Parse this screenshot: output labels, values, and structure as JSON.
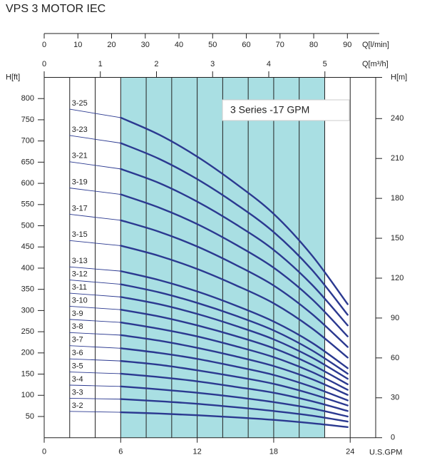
{
  "chart_data": {
    "type": "line",
    "title": "VPS 3 MOTOR IEC",
    "annotation": "3 Series -17 GPM",
    "xlabel": "U.S.GPM",
    "ylabel": "H[ft]",
    "y2label": "H[m]",
    "x2label": "Q[l/min]",
    "x3label": "Q[m³/h]",
    "xlim": [
      0,
      26
    ],
    "xticks": [
      0,
      6,
      12,
      18,
      24
    ],
    "xgrid": [
      2,
      4,
      6,
      8,
      10,
      12,
      14,
      16,
      18,
      20,
      22,
      24
    ],
    "x2lim": [
      0,
      98.4
    ],
    "x2ticks": [
      0,
      10,
      20,
      30,
      40,
      50,
      60,
      70,
      80,
      90
    ],
    "x3lim": [
      0,
      5.905
    ],
    "x3ticks": [
      0,
      1,
      2,
      3,
      4,
      5
    ],
    "ylim": [
      0,
      850
    ],
    "yticks": [
      50,
      100,
      150,
      200,
      250,
      300,
      350,
      400,
      450,
      500,
      550,
      600,
      650,
      700,
      750,
      800
    ],
    "y2lim": [
      0,
      271
    ],
    "y2ticks": [
      0,
      30,
      60,
      90,
      120,
      150,
      180,
      210,
      240
    ],
    "shade": [
      6,
      22
    ],
    "shade_color": "#a9dfe3",
    "color": "#2b3990",
    "x": [
      2,
      6,
      9,
      12,
      15,
      18,
      21,
      23.8
    ],
    "series": [
      {
        "name": "3-2",
        "values": [
          62,
          60,
          57,
          53,
          48,
          42,
          34,
          25
        ]
      },
      {
        "name": "3-3",
        "values": [
          93,
          91,
          86,
          80,
          72,
          63,
          52,
          38
        ]
      },
      {
        "name": "3-4",
        "values": [
          124,
          121,
          114,
          106,
          96,
          84,
          69,
          50
        ]
      },
      {
        "name": "3-5",
        "values": [
          155,
          151,
          143,
          133,
          120,
          106,
          86,
          63
        ]
      },
      {
        "name": "3-6",
        "values": [
          186,
          181,
          172,
          159,
          144,
          127,
          103,
          76
        ]
      },
      {
        "name": "3-7",
        "values": [
          217,
          211,
          200,
          186,
          168,
          148,
          120,
          88
        ]
      },
      {
        "name": "3-8",
        "values": [
          248,
          242,
          229,
          212,
          192,
          169,
          138,
          101
        ]
      },
      {
        "name": "3-9",
        "values": [
          279,
          272,
          257,
          239,
          216,
          190,
          155,
          113
        ]
      },
      {
        "name": "3-10",
        "values": [
          310,
          302,
          286,
          265,
          240,
          211,
          172,
          126
        ]
      },
      {
        "name": "3-11",
        "values": [
          341,
          332,
          315,
          292,
          264,
          232,
          189,
          139
        ]
      },
      {
        "name": "3-12",
        "values": [
          372,
          362,
          343,
          318,
          288,
          253,
          206,
          151
        ]
      },
      {
        "name": "3-13",
        "values": [
          403,
          393,
          372,
          345,
          312,
          274,
          224,
          164
        ]
      },
      {
        "name": "3-15",
        "values": [
          465,
          453,
          429,
          398,
          360,
          317,
          258,
          189
        ]
      },
      {
        "name": "3-17",
        "values": [
          527,
          513,
          486,
          451,
          408,
          359,
          292,
          214
        ]
      },
      {
        "name": "3-19",
        "values": [
          589,
          574,
          543,
          504,
          456,
          401,
          327,
          239
        ]
      },
      {
        "name": "3-21",
        "values": [
          651,
          634,
          601,
          557,
          504,
          443,
          361,
          265
        ]
      },
      {
        "name": "3-23",
        "values": [
          713,
          695,
          658,
          610,
          552,
          485,
          396,
          290
        ]
      },
      {
        "name": "3-25",
        "values": [
          775,
          755,
          715,
          663,
          600,
          528,
          430,
          315
        ]
      }
    ]
  }
}
